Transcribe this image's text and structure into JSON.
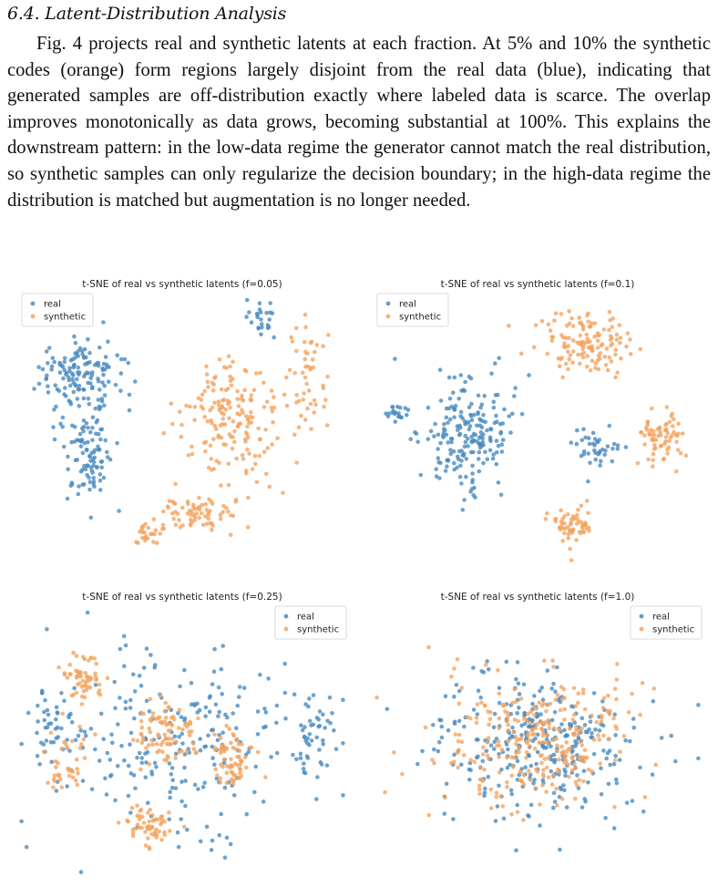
{
  "section": {
    "heading": "6.4. Latent-Distribution Analysis",
    "paragraph": "Fig. 4 projects real and synthetic latents at each fraction. At 5% and 10% the synthetic codes (orange) form regions largely disjoint from the real data (blue), indicating that generated samples are off-distribution exactly where labeled data is scarce. The overlap improves monotonically as data grows, becoming substantial at 100%. This explains the downstream pattern: in the low-data regime the generator cannot match the real distribution, so synthetic samples can only regularize the decision boundary; in the high-data regime the distribution is matched but augmentation is no longer needed."
  },
  "colors": {
    "real": "#4a8bbf",
    "synthetic": "#f4a460"
  },
  "chart_data": [
    {
      "type": "scatter",
      "title": "t-SNE of real vs synthetic latents (f=0.05)",
      "legend": [
        "real",
        "synthetic"
      ],
      "legend_position": "top-left",
      "grid": false,
      "axes_visible": false,
      "series": [
        {
          "name": "real",
          "clusters": [
            [
              0.2,
              0.3,
              0.1,
              0.14,
              110
            ],
            [
              0.21,
              0.58,
              0.06,
              0.13,
              90
            ],
            [
              0.75,
              0.08,
              0.05,
              0.05,
              25
            ],
            [
              0.14,
              0.26,
              0.08,
              0.06,
              40
            ]
          ]
        },
        {
          "name": "synthetic",
          "clusters": [
            [
              0.65,
              0.45,
              0.13,
              0.18,
              170
            ],
            [
              0.88,
              0.3,
              0.05,
              0.15,
              50
            ],
            [
              0.55,
              0.78,
              0.1,
              0.06,
              70
            ],
            [
              0.4,
              0.85,
              0.05,
              0.04,
              25
            ]
          ]
        }
      ]
    },
    {
      "type": "scatter",
      "title": "t-SNE of real vs synthetic latents (f=0.1)",
      "legend": [
        "real",
        "synthetic"
      ],
      "legend_position": "top-left",
      "grid": false,
      "axes_visible": false,
      "series": [
        {
          "name": "real",
          "clusters": [
            [
              0.28,
              0.48,
              0.11,
              0.16,
              200
            ],
            [
              0.67,
              0.53,
              0.06,
              0.06,
              40
            ],
            [
              0.07,
              0.42,
              0.03,
              0.03,
              20
            ]
          ]
        },
        {
          "name": "synthetic",
          "clusters": [
            [
              0.65,
              0.17,
              0.12,
              0.09,
              130
            ],
            [
              0.88,
              0.5,
              0.06,
              0.08,
              70
            ],
            [
              0.6,
              0.82,
              0.06,
              0.06,
              60
            ]
          ]
        }
      ]
    },
    {
      "type": "scatter",
      "title": "t-SNE of real vs synthetic latents (f=0.25)",
      "legend": [
        "real",
        "synthetic"
      ],
      "legend_position": "top-right",
      "grid": false,
      "axes_visible": false,
      "series": [
        {
          "name": "real",
          "clusters": [
            [
              0.5,
              0.5,
              0.32,
              0.28,
              240
            ],
            [
              0.1,
              0.45,
              0.05,
              0.12,
              40
            ],
            [
              0.9,
              0.45,
              0.05,
              0.12,
              40
            ]
          ]
        },
        {
          "name": "synthetic",
          "clusters": [
            [
              0.2,
              0.25,
              0.05,
              0.08,
              60
            ],
            [
              0.15,
              0.58,
              0.05,
              0.1,
              40
            ],
            [
              0.45,
              0.45,
              0.08,
              0.1,
              90
            ],
            [
              0.65,
              0.55,
              0.06,
              0.1,
              70
            ],
            [
              0.4,
              0.8,
              0.06,
              0.06,
              60
            ]
          ]
        }
      ]
    },
    {
      "type": "scatter",
      "title": "t-SNE of real vs synthetic latents (f=1.0)",
      "legend": [
        "real",
        "synthetic"
      ],
      "legend_position": "top-right",
      "grid": false,
      "axes_visible": false,
      "series": [
        {
          "name": "real",
          "clusters": [
            [
              0.5,
              0.5,
              0.28,
              0.22,
              330
            ]
          ]
        },
        {
          "name": "synthetic",
          "clusters": [
            [
              0.5,
              0.48,
              0.25,
              0.2,
              290
            ]
          ]
        }
      ]
    }
  ]
}
